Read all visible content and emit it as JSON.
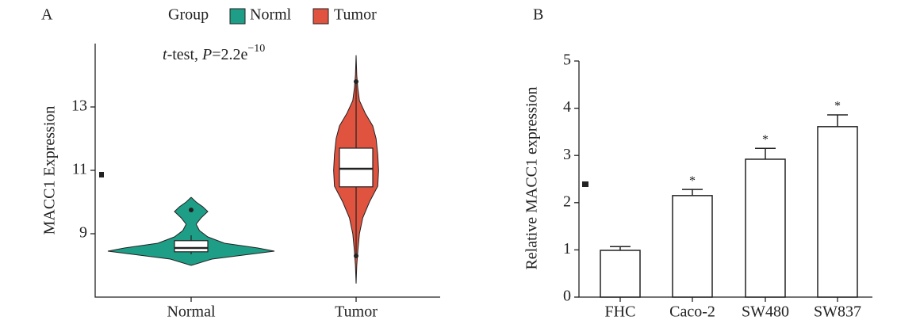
{
  "chart_data": [
    {
      "type": "violin",
      "panel": "A",
      "ylabel": "MACC1 Expression",
      "legend_title": "Group",
      "legend": [
        "Norml",
        "Tumor"
      ],
      "annotation": [
        "t",
        "-test, ",
        "P",
        "=2.2e",
        "−10"
      ],
      "categories": [
        "Normal",
        "Tumor"
      ],
      "ylim": [
        7,
        15
      ],
      "yticks": [
        9,
        11,
        13
      ],
      "series": [
        {
          "name": "Normal",
          "color": "#1f9e87",
          "density_y": [
            8.0,
            8.2,
            8.35,
            8.45,
            8.55,
            8.7,
            8.9,
            9.1,
            9.3,
            9.5,
            9.7,
            9.85,
            10.0,
            10.15
          ],
          "density": [
            0,
            0.25,
            0.7,
            1.0,
            0.8,
            0.4,
            0.2,
            0.1,
            0.06,
            0.12,
            0.2,
            0.14,
            0.06,
            0
          ],
          "whisker_low": 8.35,
          "q1": 8.43,
          "median": 8.55,
          "q3": 8.78,
          "whisker_high": 8.95,
          "outliers": [
            9.75
          ]
        },
        {
          "name": "Tumor",
          "color": "#e0533f",
          "density_y": [
            7.43,
            8.0,
            8.5,
            9.0,
            9.5,
            10.0,
            10.5,
            11.0,
            11.5,
            12.0,
            12.4,
            12.8,
            13.2,
            13.6,
            14.0,
            14.63
          ],
          "density": [
            0,
            0.008,
            0.022,
            0.04,
            0.08,
            0.16,
            0.26,
            0.27,
            0.26,
            0.24,
            0.2,
            0.11,
            0.04,
            0.02,
            0.008,
            0
          ],
          "whisker_low": 8.3,
          "q1": 10.48,
          "median": 11.05,
          "q3": 11.7,
          "whisker_high": 13.8,
          "outliers": [
            8.3,
            13.8
          ]
        }
      ]
    },
    {
      "type": "bar",
      "panel": "B",
      "ylabel": "Relative MACC1 expression",
      "categories": [
        "FHC",
        "Caco-2",
        "SW480",
        "SW837"
      ],
      "values": [
        0.99,
        2.15,
        2.92,
        3.61
      ],
      "errors": [
        0.08,
        0.13,
        0.23,
        0.25
      ],
      "significance": [
        null,
        "*",
        "*",
        "*"
      ],
      "color": "#ffffff",
      "ylim": [
        0,
        5
      ],
      "yticks": [
        0,
        1,
        2,
        3,
        4,
        5
      ]
    }
  ]
}
